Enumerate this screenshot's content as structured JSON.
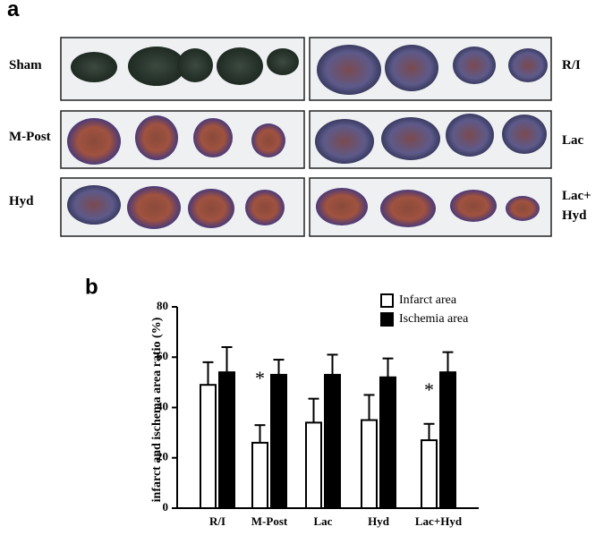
{
  "panel_a": {
    "label": "a",
    "labels": [
      "Sham",
      "R/I",
      "M-Post",
      "Lac",
      "Hyd",
      "Lac+ Hyd"
    ]
  },
  "chart_data": {
    "type": "bar",
    "label": "b",
    "y_label": "infarct and ischema area ratio (%)",
    "categories": [
      "R/I",
      "M-Post",
      "Lac",
      "Hyd",
      "Lac+Hyd"
    ],
    "series": [
      {
        "name": "Infarct area",
        "color": "#ffffff",
        "values": [
          49,
          26,
          34,
          35,
          27
        ],
        "errors": [
          9,
          7,
          9.5,
          10,
          6.5
        ]
      },
      {
        "name": "Ischemia area",
        "color": "#000000",
        "values": [
          54,
          53,
          53,
          52,
          54
        ],
        "errors": [
          10,
          6,
          8,
          7.5,
          8
        ]
      }
    ],
    "annotations": [
      "*",
      "*"
    ],
    "ylim": [
      0,
      80
    ],
    "yticks": [
      0,
      20,
      40,
      60,
      80
    ],
    "legend": "upper right"
  }
}
